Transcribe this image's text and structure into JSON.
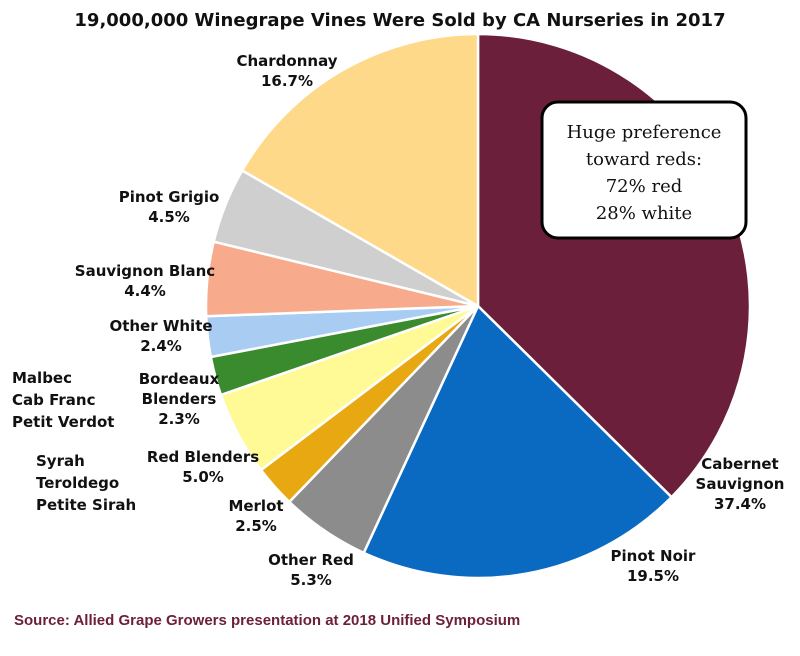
{
  "chart_data": {
    "type": "pie",
    "title": "19,000,000 Winegrape Vines Were Sold by CA Nurseries in 2017",
    "slices": [
      {
        "name": "Cabernet\nSauvignon",
        "value": 37.4,
        "label": "37.4%",
        "color": "#6b1f3a"
      },
      {
        "name": "Pinot Noir",
        "value": 19.5,
        "label": "19.5%",
        "color": "#0a6ac2"
      },
      {
        "name": "Other Red",
        "value": 5.3,
        "label": "5.3%",
        "color": "#8c8c8c"
      },
      {
        "name": "Merlot",
        "value": 2.5,
        "label": "2.5%",
        "color": "#e8a812"
      },
      {
        "name": "Red Blenders",
        "value": 5.0,
        "label": "5.0%",
        "color": "#fffa96"
      },
      {
        "name": "Bordeaux\nBlenders",
        "value": 2.3,
        "label": "2.3%",
        "color": "#3a8a2e"
      },
      {
        "name": "Other White",
        "value": 2.4,
        "label": "2.4%",
        "color": "#a9cdf2"
      },
      {
        "name": "Sauvignon Blanc",
        "value": 4.4,
        "label": "4.4%",
        "color": "#f7ab8c"
      },
      {
        "name": "Pinot Grigio",
        "value": 4.5,
        "label": "4.5%",
        "color": "#cfcfcf"
      },
      {
        "name": "Chardonnay",
        "value": 16.7,
        "label": "16.7%",
        "color": "#ffd98a"
      }
    ],
    "group_notes": [
      "Malbec\nCab Franc\nPetit Verdot",
      "Syrah\nTeroldego\nPetite Sirah"
    ],
    "callout_lines": [
      "Huge preference",
      "toward reds:",
      "72% red",
      "28% white"
    ],
    "source": "Source: Allied Grape Growers presentation at 2018 Unified Symposium",
    "source_color": "#6b1f3a"
  }
}
